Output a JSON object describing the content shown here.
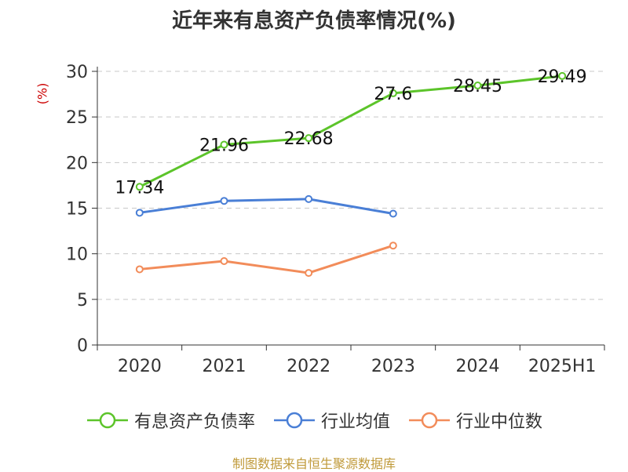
{
  "chart_data": {
    "type": "line",
    "title": "近年来有息资产负债率情况(%)",
    "ylabel": "(%)",
    "ylim": [
      0,
      30
    ],
    "yticks": [
      0,
      5,
      10,
      15,
      20,
      25,
      30
    ],
    "categories": [
      "2020",
      "2021",
      "2022",
      "2023",
      "2024",
      "2025H1"
    ],
    "grid": true,
    "legend_position": "bottom",
    "series": [
      {
        "name": "有息资产负债率",
        "color": "#5cc42a",
        "values": [
          17.34,
          21.96,
          22.68,
          27.6,
          28.45,
          29.49
        ],
        "labels": [
          "17.34",
          "21.96",
          "22.68",
          "27.6",
          "28.45",
          "29.49"
        ]
      },
      {
        "name": "行业均值",
        "color": "#4a7fd6",
        "values": [
          14.5,
          15.8,
          16.0,
          14.4,
          null,
          null
        ]
      },
      {
        "name": "行业中位数",
        "color": "#f28c5a",
        "values": [
          8.3,
          9.2,
          7.9,
          10.9,
          null,
          null
        ]
      }
    ]
  },
  "source": "制图数据来自恒生聚源数据库"
}
